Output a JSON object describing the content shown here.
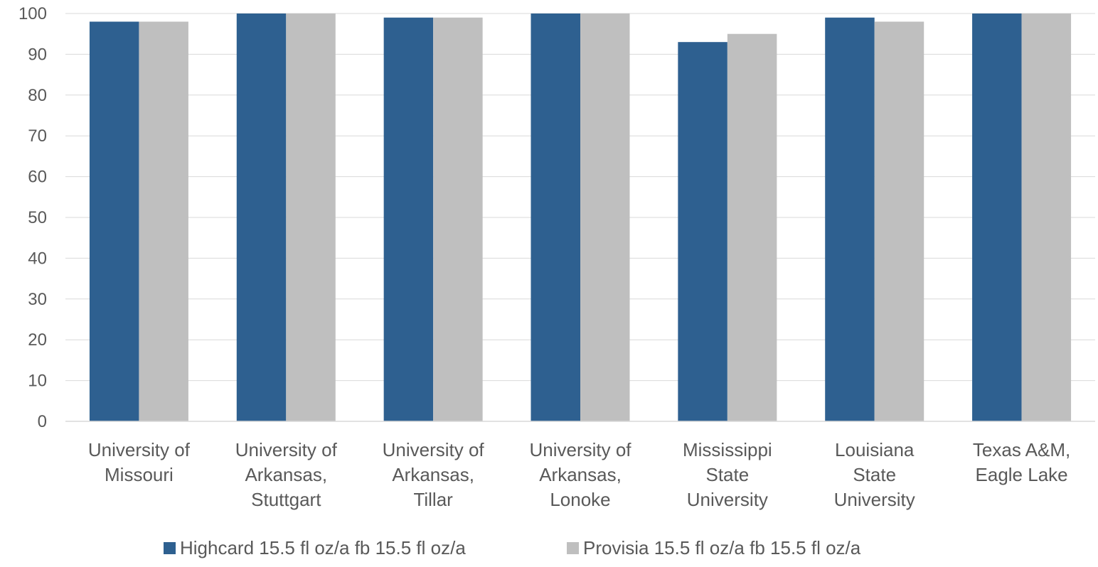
{
  "chart_data": {
    "type": "bar",
    "title": "",
    "xlabel": "",
    "ylabel": "",
    "ylim": [
      0,
      100
    ],
    "yticks": [
      0,
      10,
      20,
      30,
      40,
      50,
      60,
      70,
      80,
      90,
      100
    ],
    "grid": true,
    "legend_position": "bottom",
    "categories": [
      [
        "University of",
        "Missouri"
      ],
      [
        "University of",
        "Arkansas,",
        "Stuttgart"
      ],
      [
        "University of",
        "Arkansas,",
        "Tillar"
      ],
      [
        "University of",
        "Arkansas,",
        "Lonoke"
      ],
      [
        "Mississippi",
        "State",
        "University"
      ],
      [
        "Louisiana",
        "State",
        "University"
      ],
      [
        "Texas A&M,",
        "Eagle Lake"
      ]
    ],
    "series": [
      {
        "name": "Highcard 15.5 fl oz/a fb 15.5 fl oz/a",
        "color": "#2e6090",
        "values": [
          98,
          100,
          99,
          100,
          93,
          99,
          100
        ]
      },
      {
        "name": "Provisia 15.5 fl oz/a fb 15.5 fl oz/a",
        "color": "#bfbfbf",
        "values": [
          98,
          100,
          99,
          100,
          95,
          98,
          100
        ]
      }
    ]
  }
}
